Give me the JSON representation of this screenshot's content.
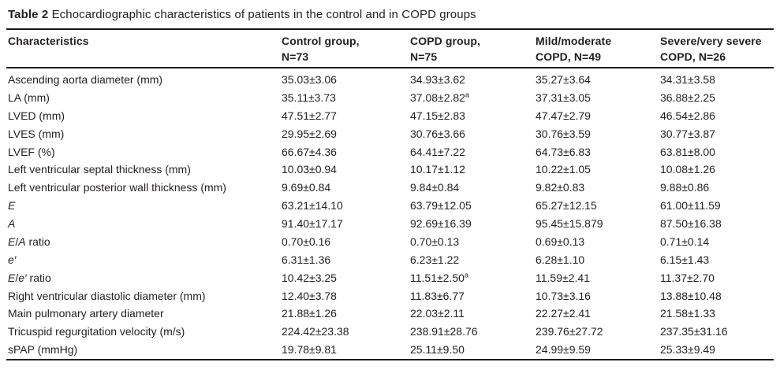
{
  "page": {
    "background": "#ffffff",
    "text_color": "#231f20",
    "rule_color": "#1c1c1c"
  },
  "table": {
    "label": "Table 2",
    "caption": "Echocardiographic characteristics of patients in the control and in COPD groups",
    "columns": [
      {
        "line1": "Characteristics",
        "line2": ""
      },
      {
        "line1": "Control group,",
        "line2": "N=73"
      },
      {
        "line1": "COPD group,",
        "line2": "N=75"
      },
      {
        "line1": "Mild/moderate",
        "line2": "COPD, N=49"
      },
      {
        "line1": "Severe/very severe",
        "line2": "COPD, N=26"
      }
    ],
    "rows": [
      {
        "label": "Ascending aorta diameter (mm)",
        "values": [
          "35.03±3.06",
          "34.93±3.62",
          "35.27±3.64",
          "34.31±3.58"
        ]
      },
      {
        "label": "LA (mm)",
        "values": [
          "35.11±3.73",
          "37.08±2.82",
          "37.31±3.05",
          "36.88±2.25"
        ],
        "sups": [
          null,
          "a",
          null,
          null
        ]
      },
      {
        "label": "LVED (mm)",
        "values": [
          "47.51±2.77",
          "47.15±2.83",
          "47.47±2.79",
          "46.54±2.86"
        ]
      },
      {
        "label": "LVES (mm)",
        "values": [
          "29.95±2.69",
          "30.76±3.66",
          "30.76±3.59",
          "30.77±3.87"
        ]
      },
      {
        "label": "LVEF (%)",
        "values": [
          "66.67±4.36",
          "64.41±7.22",
          "64.73±6.83",
          "63.81±8.00"
        ]
      },
      {
        "label": "Left ventricular septal thickness (mm)",
        "values": [
          "10.03±0.94",
          "10.17±1.12",
          "10.22±1.05",
          "10.08±1.26"
        ]
      },
      {
        "label": "Left ventricular posterior wall thickness (mm)",
        "values": [
          "9.69±0.84",
          "9.84±0.84",
          "9.82±0.83",
          "9.88±0.86"
        ]
      },
      {
        "label": "*E*",
        "values": [
          "63.21±14.10",
          "63.79±12.05",
          "65.27±12.15",
          "61.00±11.59"
        ]
      },
      {
        "label": "*A*",
        "values": [
          "91.40±17.17",
          "92.69±16.39",
          "95.45±15.879",
          "87.50±16.38"
        ]
      },
      {
        "label": "*E*/*A* ratio",
        "values": [
          "0.70±0.16",
          "0.70±0.13",
          "0.69±0.13",
          "0.71±0.14"
        ]
      },
      {
        "label": "*e′*",
        "values": [
          "6.31±1.36",
          "6.23±1.22",
          "6.28±1.10",
          "6.15±1.43"
        ]
      },
      {
        "label": "*E*/*e′* ratio",
        "values": [
          "10.42±3.25",
          "11.51±2.50",
          "11.59±2.41",
          "11.37±2.70"
        ],
        "sups": [
          null,
          "a",
          null,
          null
        ]
      },
      {
        "label": "Right ventricular diastolic diameter (mm)",
        "values": [
          "12.40±3.78",
          "11.83±6.77",
          "10.73±3.16",
          "13.88±10.48"
        ]
      },
      {
        "label": "Main pulmonary artery diameter",
        "values": [
          "21.88±1.26",
          "22.03±2.11",
          "22.27±2.41",
          "21.58±1.33"
        ]
      },
      {
        "label": "Tricuspid regurgitation velocity (m/s)",
        "values": [
          "224.42±23.38",
          "238.91±28.76",
          "239.76±27.72",
          "237.35±31.16"
        ]
      },
      {
        "label": "sPAP (mmHg)",
        "values": [
          "19.78±9.81",
          "25.11±9.50",
          "24.99±9.59",
          "25.33±9.49"
        ]
      }
    ]
  }
}
